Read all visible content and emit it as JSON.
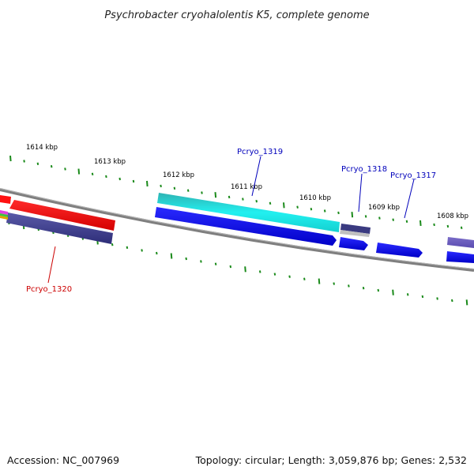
{
  "title": "Psychrobacter cryohalolentis K5, complete genome",
  "footer": {
    "accession": "Accession: NC_007969",
    "summary": "Topology: circular; Length: 3,059,876 bp; Genes: 2,532"
  },
  "scale_labels": [
    "1614 kbp",
    "1613 kbp",
    "1612 kbp",
    "1611 kbp",
    "1610 kbp",
    "1609 kbp",
    "1608 kbp"
  ],
  "genes": [
    {
      "name": "Pcryo_1319",
      "color": "#0000bb"
    },
    {
      "name": "Pcryo_1318",
      "color": "#0000bb"
    },
    {
      "name": "Pcryo_1317",
      "color": "#0000bb"
    },
    {
      "name": "Pcryo_1320",
      "color": "#cc0000"
    }
  ],
  "colors": {
    "backbone": "#808080",
    "forward_cds": "#0000ee",
    "forward_feature": "#22dddd",
    "reverse_cds": "#ee0000",
    "reverse_feature": "#3a3a88",
    "ticks": "#1a8a1a"
  }
}
